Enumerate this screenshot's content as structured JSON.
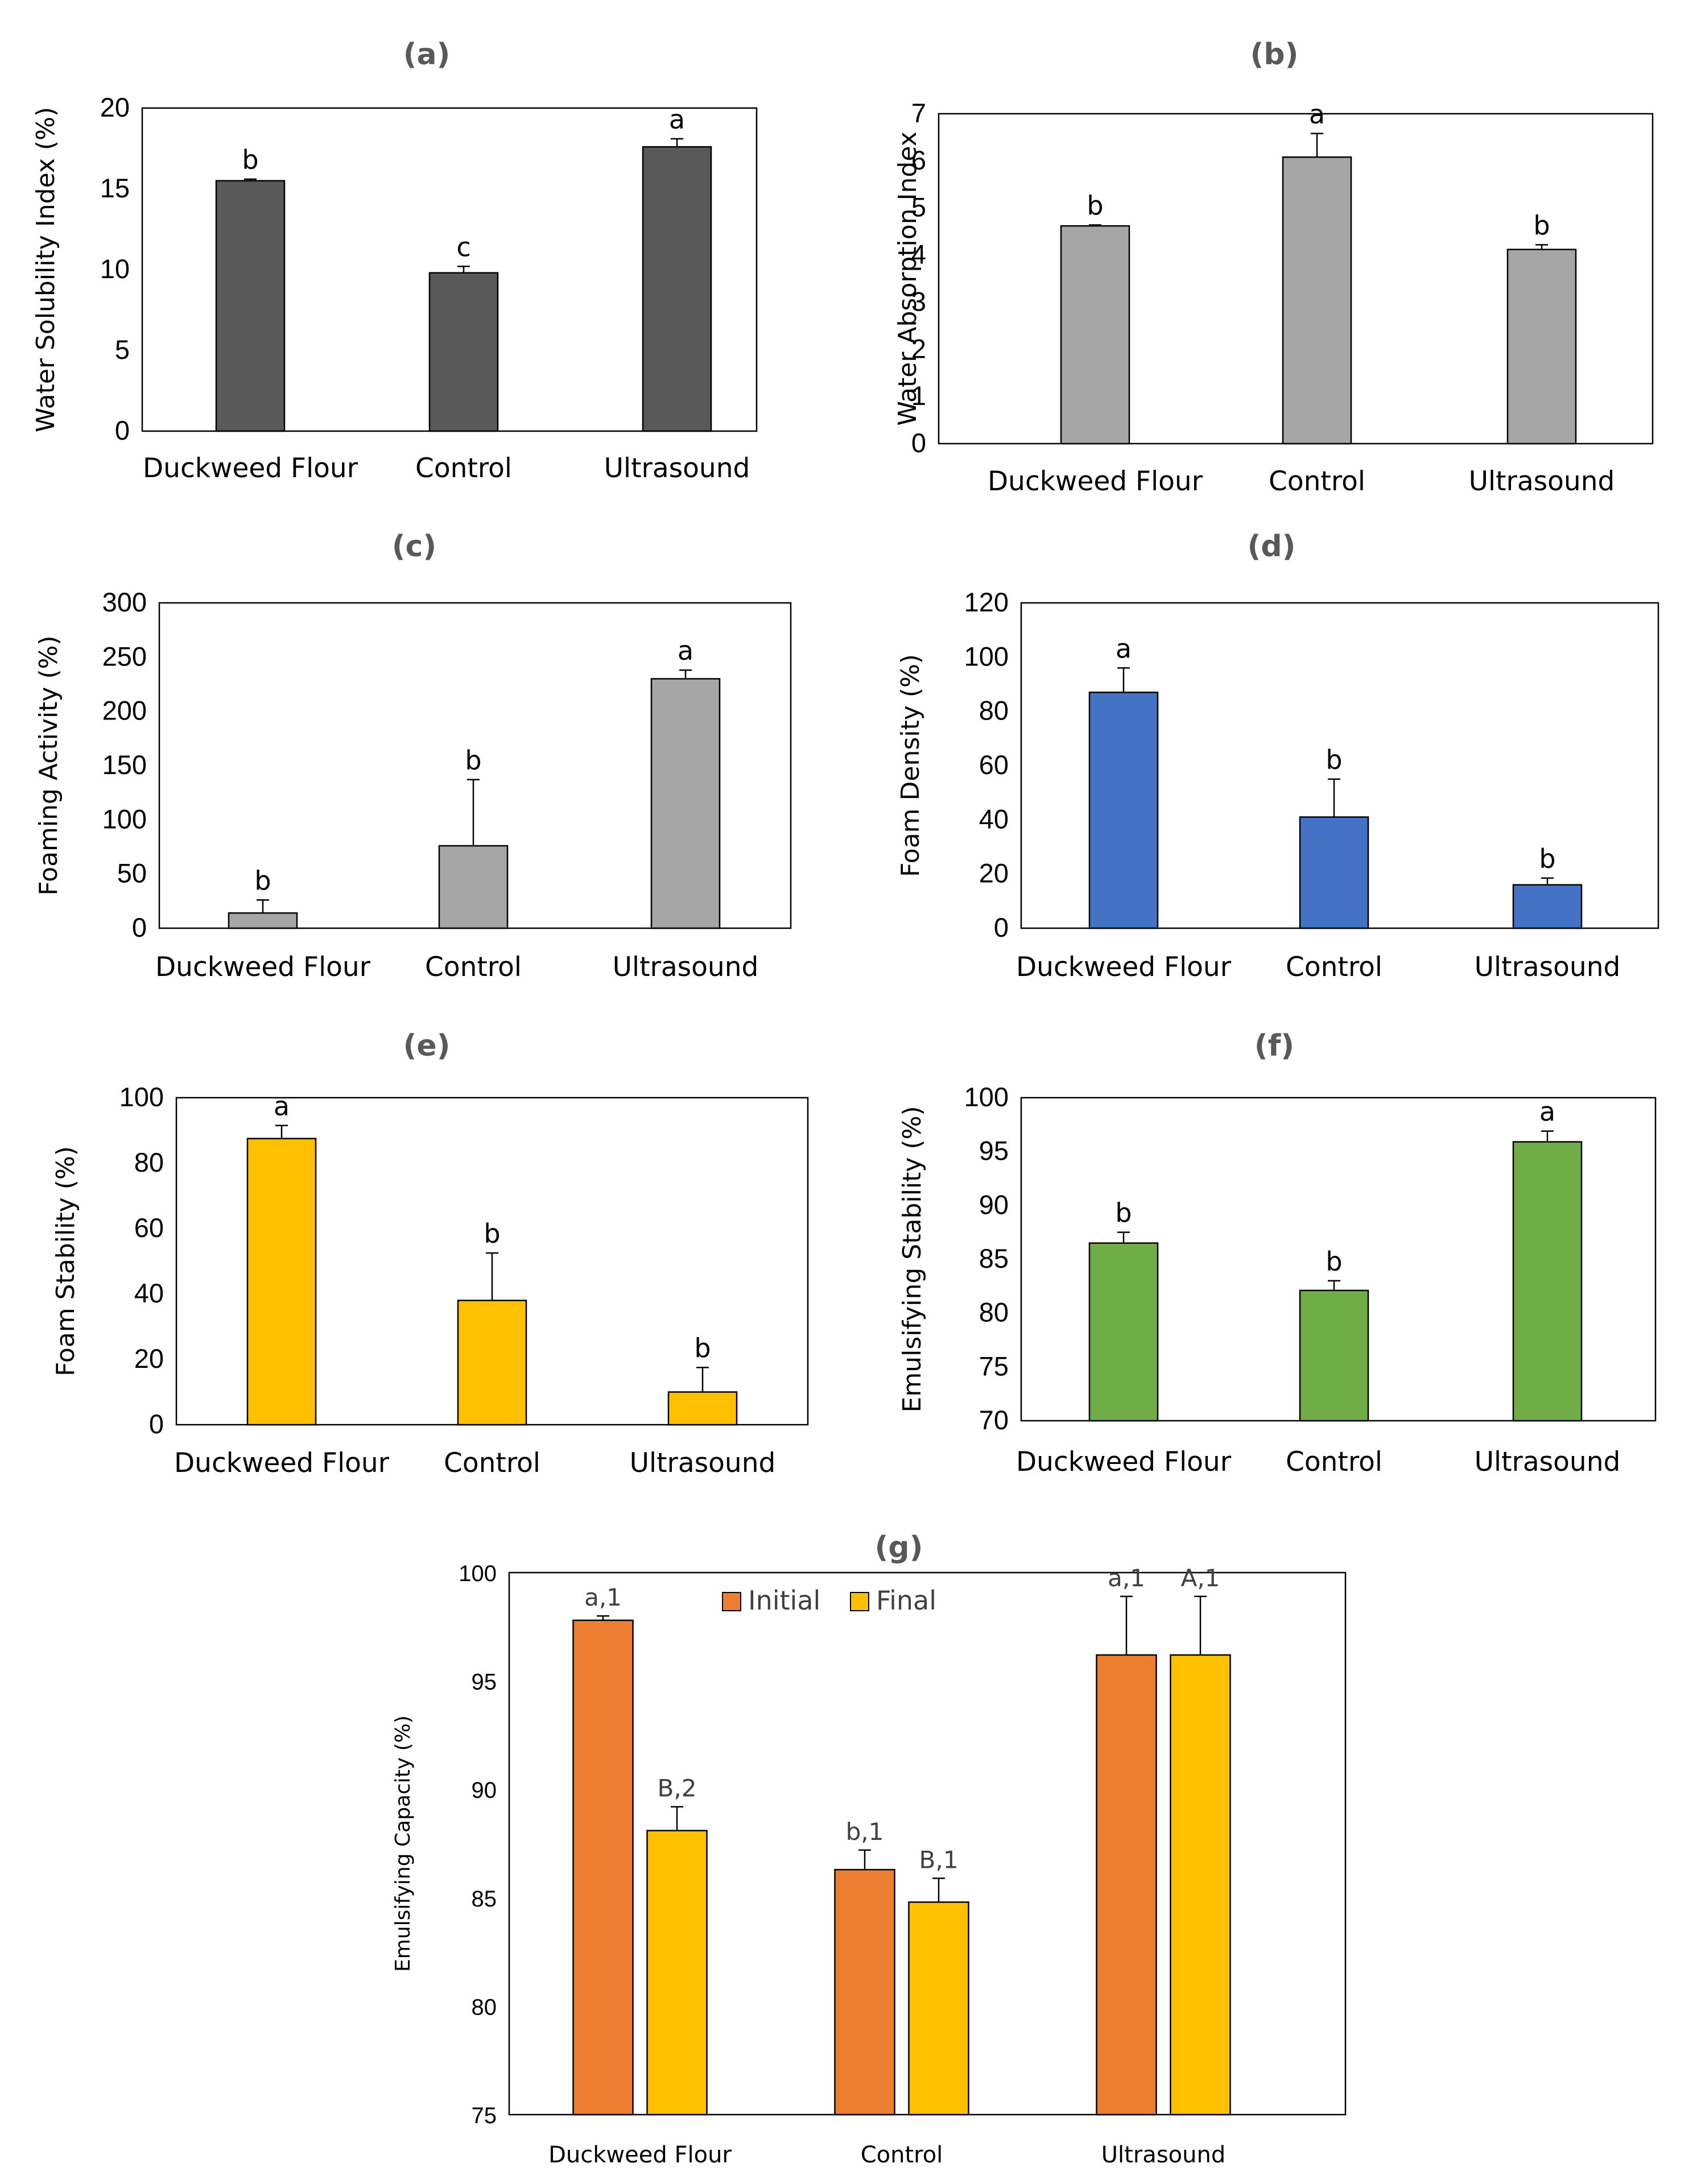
{
  "colors": {
    "dark_gray": "#595959",
    "light_gray": "#a6a6a6",
    "blue": "#4472c4",
    "yellow": "#ffc000",
    "green": "#70ad47",
    "orange": "#ed7d31"
  },
  "chart_data": [
    {
      "id": "a",
      "type": "bar",
      "title": "(a)",
      "ylabel": "Water Solubility Index (%)",
      "categories": [
        "Duckweed Flour",
        "Control",
        "Ultrasound"
      ],
      "values": [
        15.5,
        9.8,
        17.6
      ],
      "errors": [
        0.1,
        0.4,
        0.5
      ],
      "letters": [
        "b",
        "c",
        "a"
      ],
      "ylim": [
        0,
        20
      ],
      "yticks": [
        0,
        5,
        10,
        15,
        20
      ],
      "color": "#595959"
    },
    {
      "id": "b",
      "type": "bar",
      "title": "(b)",
      "ylabel": "Water Absorption Index",
      "categories": [
        "Duckweed Flour",
        "Control",
        "Ultrasound"
      ],
      "values": [
        4.62,
        6.08,
        4.12
      ],
      "errors": [
        0.02,
        0.5,
        0.1
      ],
      "letters": [
        "b",
        "a",
        "b"
      ],
      "ylim": [
        0,
        7
      ],
      "yticks": [
        0,
        1,
        2,
        3,
        4,
        5,
        6,
        7
      ],
      "color": "#a6a6a6"
    },
    {
      "id": "c",
      "type": "bar",
      "title": "(c)",
      "ylabel": "Foaming Activity (%)",
      "categories": [
        "Duckweed Flour",
        "Control",
        "Ultrasound"
      ],
      "values": [
        14,
        76,
        230
      ],
      "errors": [
        12,
        61,
        8
      ],
      "letters": [
        "b",
        "b",
        "a"
      ],
      "ylim": [
        0,
        300
      ],
      "yticks": [
        0,
        50,
        100,
        150,
        200,
        250,
        300
      ],
      "color": "#a6a6a6"
    },
    {
      "id": "d",
      "type": "bar",
      "title": "(d)",
      "ylabel": "Foam Density (%)",
      "categories": [
        "Duckweed Flour",
        "Control",
        "Ultrasound"
      ],
      "values": [
        87,
        41,
        16
      ],
      "errors": [
        9,
        14,
        2.5
      ],
      "letters": [
        "a",
        "b",
        "b"
      ],
      "ylim": [
        0,
        120
      ],
      "yticks": [
        0,
        20,
        40,
        60,
        80,
        100,
        120
      ],
      "color": "#4472c4"
    },
    {
      "id": "e",
      "type": "bar",
      "title": "(e)",
      "ylabel": "Foam Stability (%)",
      "categories": [
        "Duckweed Flour",
        "Control",
        "Ultrasound"
      ],
      "values": [
        87.5,
        38,
        10
      ],
      "errors": [
        4,
        14.5,
        7.5
      ],
      "letters": [
        "a",
        "b",
        "b"
      ],
      "ylim": [
        0,
        100
      ],
      "yticks": [
        0,
        20,
        40,
        60,
        80,
        100
      ],
      "color": "#ffc000"
    },
    {
      "id": "f",
      "type": "bar",
      "title": "(f)",
      "ylabel": "Emulsifying Stability (%)",
      "categories": [
        "Duckweed Flour",
        "Control",
        "Ultrasound"
      ],
      "values": [
        86.5,
        82.1,
        95.9
      ],
      "errors": [
        1.0,
        0.9,
        1.0
      ],
      "letters": [
        "b",
        "b",
        "a"
      ],
      "ylim": [
        70,
        100
      ],
      "yticks": [
        70,
        75,
        80,
        85,
        90,
        95,
        100
      ],
      "color": "#70ad47"
    },
    {
      "id": "g",
      "type": "bar",
      "title": "(g)",
      "ylabel": "Emulsifying Capacity (%)",
      "categories": [
        "Duckweed Flour",
        "Control",
        "Ultrasound"
      ],
      "series": [
        {
          "name": "Initial",
          "values": [
            97.8,
            86.3,
            96.2
          ],
          "errors": [
            0.2,
            0.9,
            2.7
          ],
          "letters": [
            "a,1",
            "b,1",
            "a,1"
          ],
          "color": "#ed7d31"
        },
        {
          "name": "Final",
          "values": [
            88.1,
            84.8,
            96.2
          ],
          "errors": [
            1.1,
            1.1,
            2.7
          ],
          "letters": [
            "B,2",
            "B,1",
            "A,1"
          ],
          "color": "#ffc000"
        }
      ],
      "ylim": [
        75,
        100
      ],
      "yticks": [
        75,
        80,
        85,
        90,
        95,
        100
      ],
      "legend": "top-center"
    }
  ]
}
